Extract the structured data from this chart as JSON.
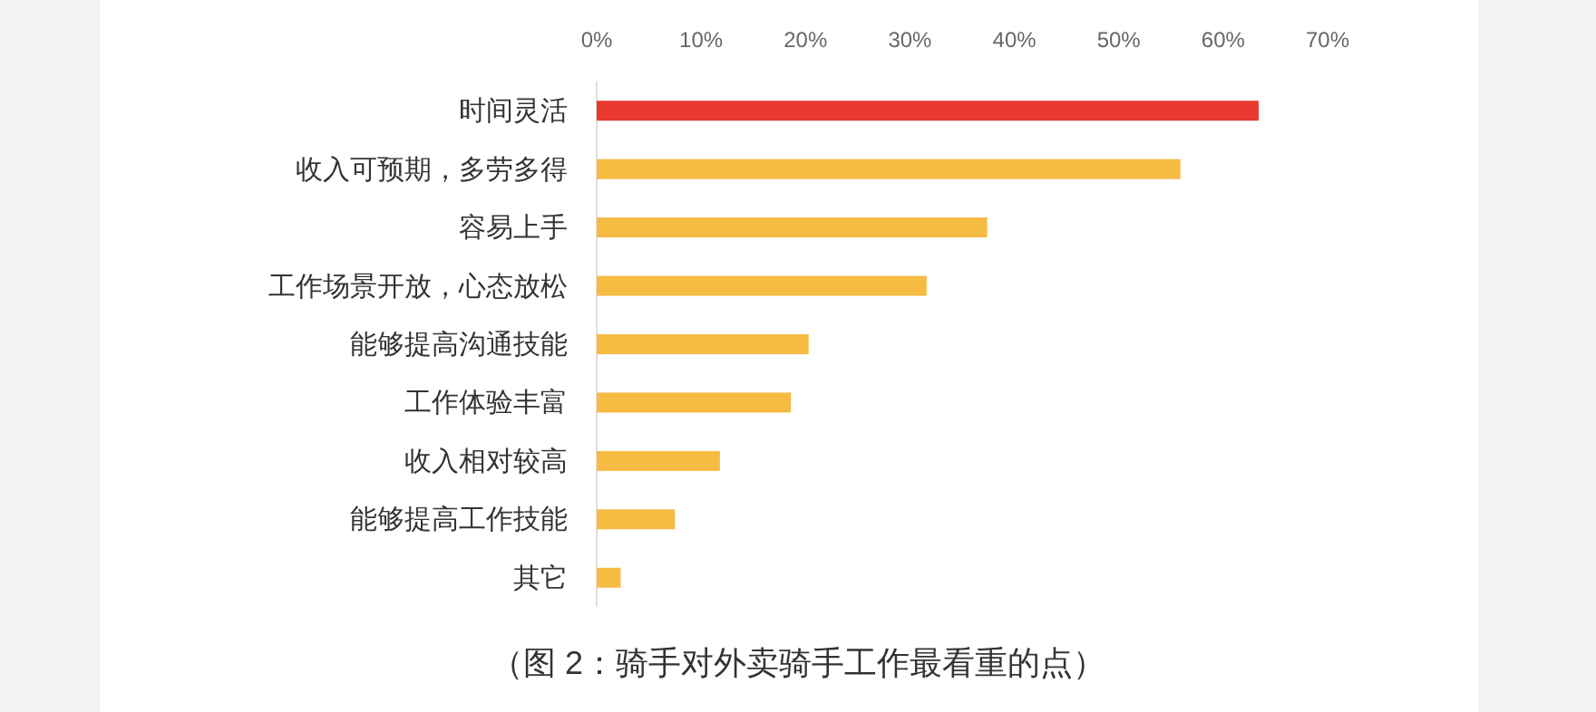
{
  "chart_data": {
    "type": "bar",
    "orientation": "horizontal",
    "categories": [
      "时间灵活",
      "收入可预期，多劳多得",
      "容易上手",
      "工作场景开放，心态放松",
      "能够提高沟通技能",
      "工作体验丰富",
      "收入相对较高",
      "能够提高工作技能",
      "其它"
    ],
    "values": [
      63.4,
      55.9,
      37.4,
      31.6,
      20.3,
      18.6,
      11.8,
      7.5,
      2.3
    ],
    "colors": [
      "#e8382f",
      "#f6bb42",
      "#f6bb42",
      "#f6bb42",
      "#f6bb42",
      "#f6bb42",
      "#f6bb42",
      "#f6bb42",
      "#f6bb42"
    ],
    "xlim": [
      0,
      70
    ],
    "xticks": [
      {
        "value": 0,
        "label": "0%"
      },
      {
        "value": 10,
        "label": "10%"
      },
      {
        "value": 20,
        "label": "20%"
      },
      {
        "value": 30,
        "label": "30%"
      },
      {
        "value": 40,
        "label": "40%"
      },
      {
        "value": 50,
        "label": "50%"
      },
      {
        "value": 60,
        "label": "60%"
      },
      {
        "value": 70,
        "label": "70%"
      }
    ],
    "annotations": [
      "（图 2：骑手对外卖骑手工作最看重的点）"
    ]
  }
}
